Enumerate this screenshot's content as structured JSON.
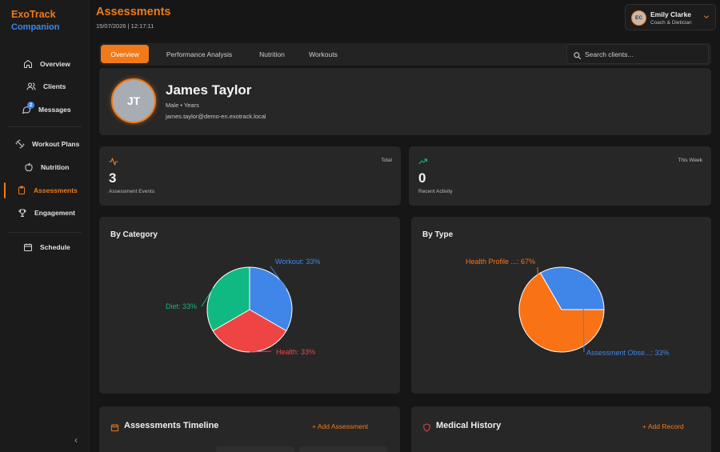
{
  "brand": {
    "line1": "ExoTrack",
    "line2": "Companion"
  },
  "sidebar": {
    "items": [
      {
        "label": "Overview",
        "icon": "home-icon"
      },
      {
        "label": "Clients",
        "icon": "users-icon"
      },
      {
        "label": "Messages",
        "icon": "message-icon",
        "badge": "2"
      },
      {
        "label": "Workout Plans",
        "icon": "dumbbell-icon"
      },
      {
        "label": "Nutrition",
        "icon": "apple-icon"
      },
      {
        "label": "Assessments",
        "icon": "clipboard-icon",
        "active": true
      },
      {
        "label": "Engagement",
        "icon": "trophy-icon"
      },
      {
        "label": "Schedule",
        "icon": "calendar-icon"
      }
    ],
    "collapse_glyph": "‹"
  },
  "header": {
    "title": "Assessments",
    "datetime": "15/07/2026 | 12:17:11"
  },
  "user": {
    "initials": "EC",
    "name": "Emily Clarke",
    "role": "Coach & Dietician"
  },
  "tabs": [
    {
      "label": "Overview",
      "active": true
    },
    {
      "label": "Performance Analysis"
    },
    {
      "label": "Nutrition"
    },
    {
      "label": "Workouts"
    }
  ],
  "search": {
    "placeholder": "Search clients..."
  },
  "profile": {
    "initials": "JT",
    "name": "James Taylor",
    "meta": "Male  •  Years",
    "email": "james.taylor@demo-en.exotrack.local"
  },
  "stats": [
    {
      "tag": "Total",
      "value": "3",
      "caption": "Assessment Events",
      "icon": "activity-icon"
    },
    {
      "tag": "This Week",
      "value": "0",
      "caption": "Recent Activity",
      "icon": "trending-up-icon"
    }
  ],
  "chart_data": [
    {
      "type": "pie",
      "title": "By Category",
      "slices": [
        {
          "label": "Workout: 33%",
          "value": 33.33,
          "color": "#3f86e8"
        },
        {
          "label": "Health: 33%",
          "value": 33.33,
          "color": "#ef4444"
        },
        {
          "label": "Diet: 33%",
          "value": 33.33,
          "color": "#10b981"
        }
      ]
    },
    {
      "type": "pie",
      "title": "By Type",
      "slices": [
        {
          "label": "Health Profile ...: 67%",
          "value": 66.67,
          "color": "#f97316"
        },
        {
          "label": "Assessment Obse...: 33%",
          "value": 33.33,
          "color": "#3f86e8"
        }
      ]
    }
  ],
  "sections": [
    {
      "title": "Assessments Timeline",
      "action": "+ Add Assessment",
      "icon": "calendar-icon"
    },
    {
      "title": "Medical History",
      "action": "+ Add Record",
      "icon": "shield-icon"
    }
  ],
  "colors": {
    "accent": "#f07a1a",
    "blue": "#3f86e8"
  }
}
